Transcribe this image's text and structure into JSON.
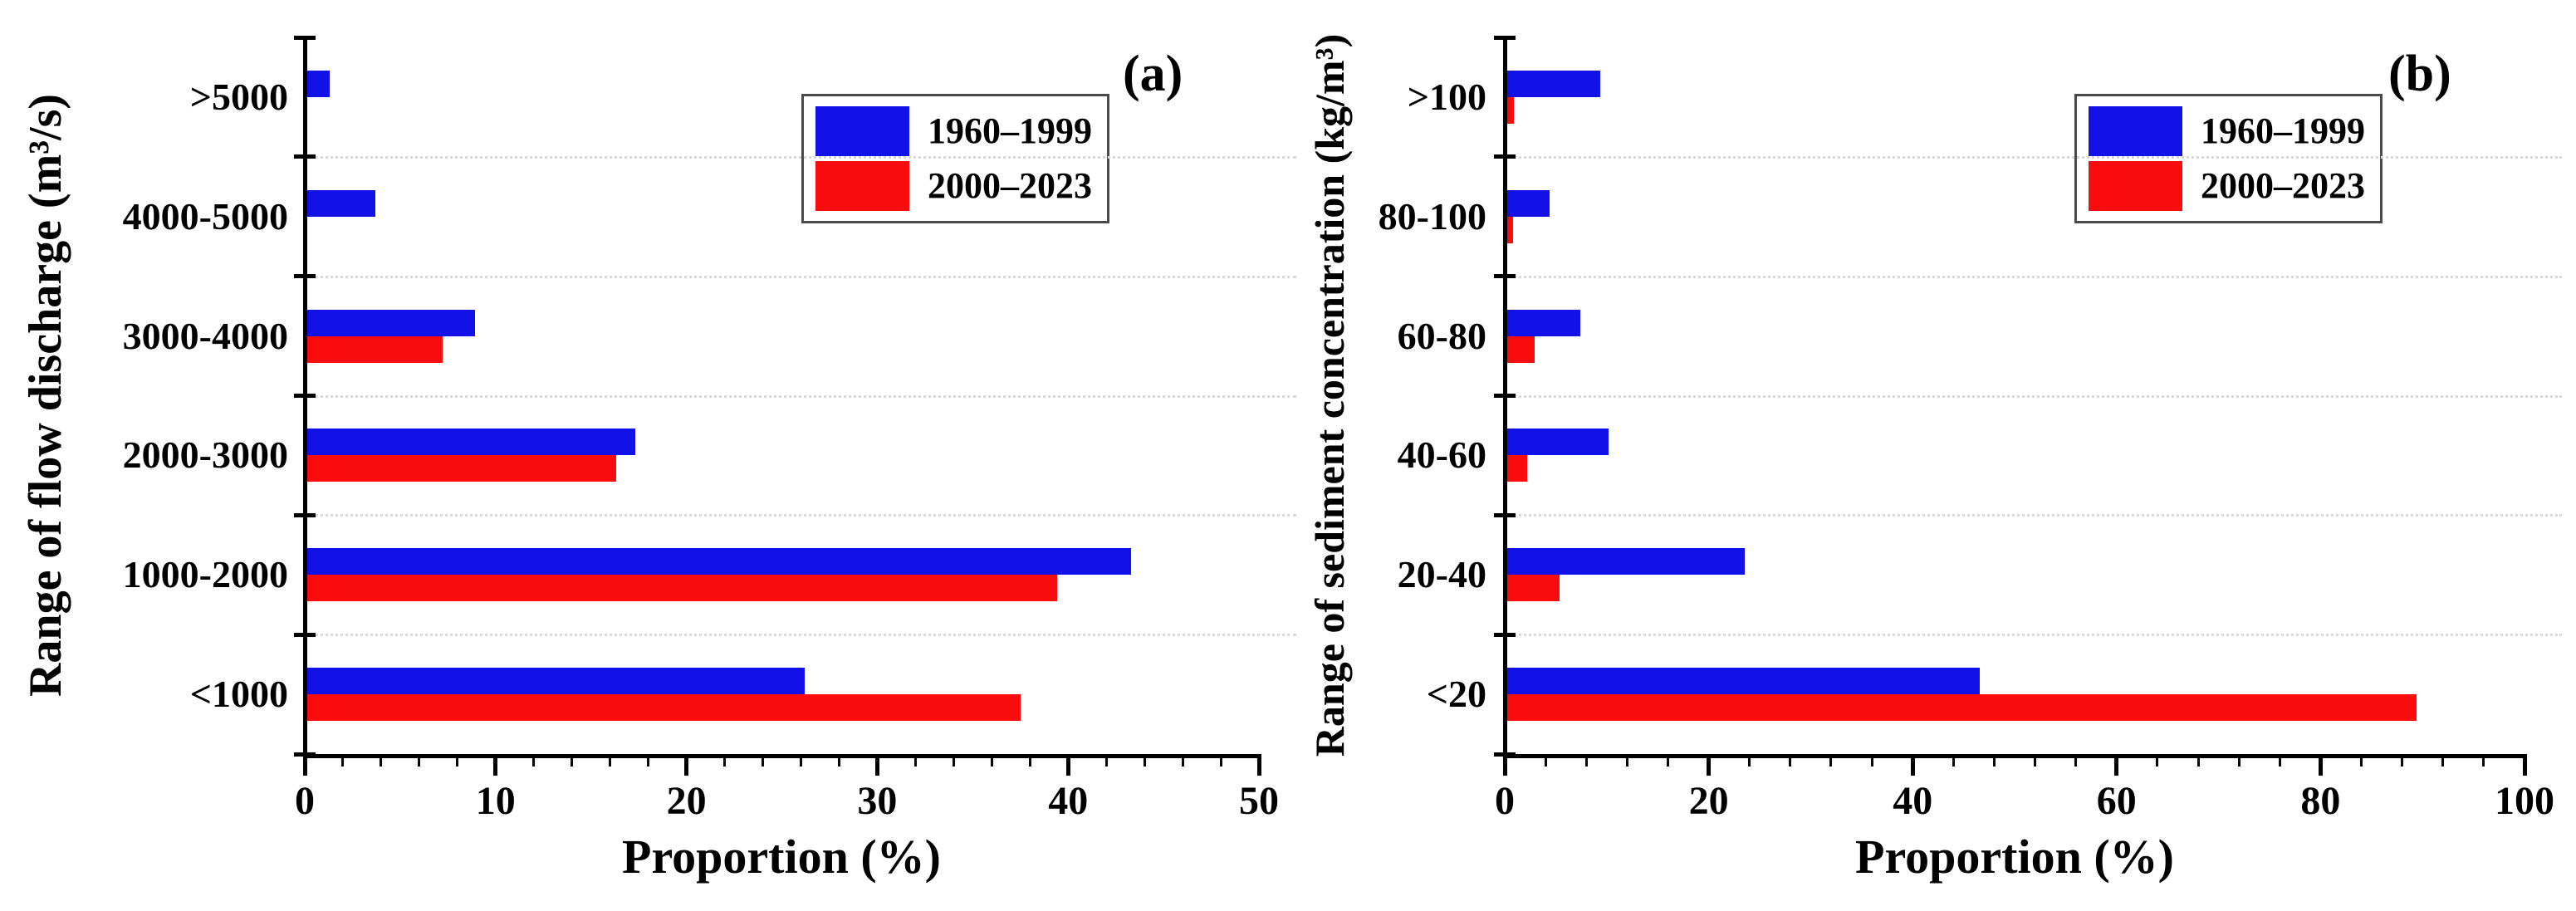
{
  "figure": {
    "panel_a_label": "(a)",
    "panel_b_label": "(b)"
  },
  "colors": {
    "series_1960_1999": "#1212e8",
    "series_2000_2023": "#fb0c0c",
    "axis": "#000000",
    "gridline": "#d8d8d8",
    "legend_border": "#4a4a4a",
    "background": "#ffffff"
  },
  "chart_data": [
    {
      "type": "bar",
      "orientation": "horizontal",
      "panel_label": "(a)",
      "title": "",
      "ylabel": "Range of flow discharge (m³/s)",
      "xlabel": "Proportion (%)",
      "xlim": [
        0,
        50
      ],
      "x_major_ticks": [
        0,
        10,
        20,
        30,
        40,
        50
      ],
      "x_minor_step": 2,
      "grid": "dotted horizontal lines at category boundaries",
      "legend_position": "inside top, center-right",
      "categories_top_to_bottom": [
        ">5000",
        "4000-5000",
        "3000-4000",
        "2000-3000",
        "1000-2000",
        "<1000"
      ],
      "series": [
        {
          "name": "1960–1999",
          "color": "#1212e8",
          "values": [
            1.2,
            3.6,
            8.8,
            17.2,
            43.2,
            26.1
          ]
        },
        {
          "name": "2000–2023",
          "color": "#fb0c0c",
          "values": [
            0,
            0,
            7.1,
            16.2,
            39.3,
            37.4
          ]
        }
      ]
    },
    {
      "type": "bar",
      "orientation": "horizontal",
      "panel_label": "(b)",
      "title": "",
      "ylabel": "Range of sediment concentration (kg/m³)",
      "xlabel": "Proportion (%)",
      "xlim": [
        0,
        100
      ],
      "x_major_ticks": [
        0,
        20,
        40,
        60,
        80,
        100
      ],
      "x_minor_step": 4,
      "grid": "dotted horizontal lines at category boundaries",
      "legend_position": "inside top, center-right",
      "categories_top_to_bottom": [
        ">100",
        "80-100",
        "60-80",
        "40-60",
        "20-40",
        "<20"
      ],
      "series": [
        {
          "name": "1960–1999",
          "color": "#1212e8",
          "values": [
            9.2,
            4.2,
            7.2,
            10.0,
            23.3,
            46.4
          ]
        },
        {
          "name": "2000–2023",
          "color": "#fb0c0c",
          "values": [
            0.7,
            0.6,
            2.7,
            2.0,
            5.2,
            89.2
          ]
        }
      ]
    }
  ]
}
